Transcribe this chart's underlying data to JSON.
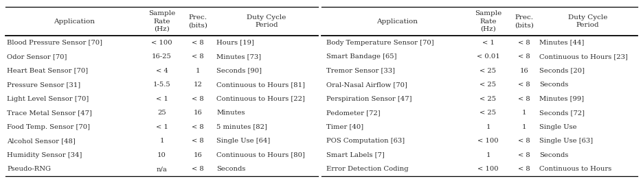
{
  "col_headers_left": [
    "Application",
    "Sample\nRate\n(Hz)",
    "Prec.\n(bits)",
    "Duty Cycle\nPeriod"
  ],
  "col_headers_right": [
    "Application",
    "Sample\nRate\n(Hz)",
    "Prec.\n(bits)",
    "Duty Cycle\nPeriod"
  ],
  "left_rows": [
    [
      "Blood Pressure Sensor [70]",
      "< 100",
      "< 8",
      "Hours [19]"
    ],
    [
      "Odor Sensor [70]",
      "16-25",
      "< 8",
      "Minutes [73]"
    ],
    [
      "Heart Beat Sensor [70]",
      "< 4",
      "1",
      "Seconds [90]"
    ],
    [
      "Pressure Sensor [31]",
      "1-5.5",
      "12",
      "Continuous to Hours [81]"
    ],
    [
      "Light Level Sensor [70]",
      "< 1",
      "< 8",
      "Continuous to Hours [22]"
    ],
    [
      "Trace Metal Sensor [47]",
      "25",
      "16",
      "Minutes"
    ],
    [
      "Food Temp. Sensor [70]",
      "< 1",
      "< 8",
      "5 minutes [82]"
    ],
    [
      "Alcohol Sensor [48]",
      "1",
      "< 8",
      "Single Use [64]"
    ],
    [
      "Humidity Sensor [34]",
      "10",
      "16",
      "Continuous to Hours [80]"
    ],
    [
      "Pseudo-RNG",
      "n/a",
      "< 8",
      "Seconds"
    ]
  ],
  "right_rows": [
    [
      "Body Temperature Sensor [70]",
      "< 1",
      "< 8",
      "Minutes [44]"
    ],
    [
      "Smart Bandage [65]",
      "< 0.01",
      "< 8",
      "Continuous to Hours [23]"
    ],
    [
      "Tremor Sensor [33]",
      "< 25",
      "16",
      "Seconds [20]"
    ],
    [
      "Oral-Nasal Airflow [70]",
      "< 25",
      "< 8",
      "Seconds"
    ],
    [
      "Perspiration Sensor [47]",
      "< 25",
      "< 8",
      "Minutes [99]"
    ],
    [
      "Pedometer [72]",
      "< 25",
      "1",
      "Seconds [72]"
    ],
    [
      "Timer [40]",
      "1",
      "1",
      "Single Use"
    ],
    [
      "POS Computation [63]",
      "< 100",
      "< 8",
      "Single Use [63]"
    ],
    [
      "Smart Labels [7]",
      "1",
      "< 8",
      "Seconds"
    ],
    [
      "Error Detection Coding",
      "< 100",
      "< 8",
      "Continuous to Hours"
    ]
  ],
  "bg_color": "#ffffff",
  "text_color": "#2b2b2b",
  "header_fontsize": 7.5,
  "row_fontsize": 7.2,
  "fig_width": 9.36,
  "fig_height": 2.67,
  "dpi": 100
}
